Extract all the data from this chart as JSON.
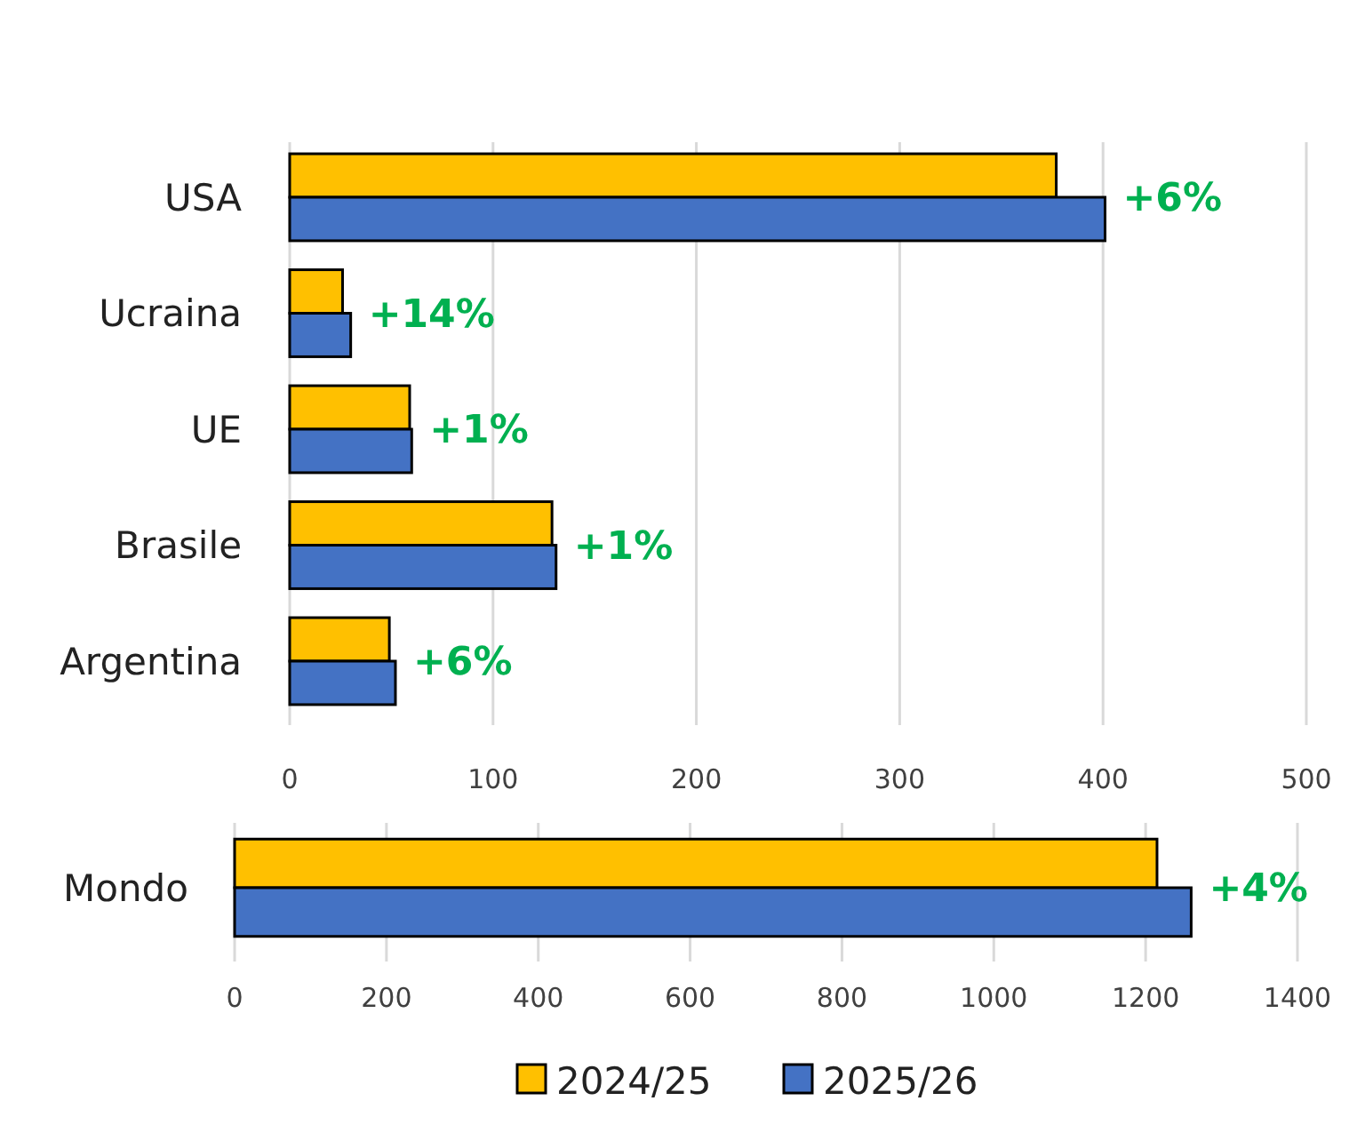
{
  "chart_data": [
    {
      "type": "bar",
      "orientation": "horizontal",
      "categories": [
        "USA",
        "Ucraina",
        "UE",
        "Brasile",
        "Argentina"
      ],
      "series": [
        {
          "color": "#ffc000",
          "values": [
            377,
            26,
            59,
            129,
            49
          ]
        },
        {
          "color": "#4472c4",
          "values": [
            401,
            30,
            60,
            131,
            52
          ]
        }
      ],
      "xlim": [
        0,
        500
      ],
      "xticks": [
        0,
        100,
        200,
        300,
        400,
        500
      ],
      "grid": "x",
      "annotations": [
        {
          "text": "+6%",
          "x": 401,
          "y": "USA"
        },
        {
          "text": "+14%",
          "x": 30,
          "y": "Ucraina"
        },
        {
          "text": "+1%",
          "x": 60,
          "y": "UE"
        },
        {
          "text": "+1%",
          "x": 131,
          "y": "Brasile"
        },
        {
          "text": "+6%",
          "x": 52,
          "y": "Argentina"
        }
      ]
    },
    {
      "type": "bar",
      "orientation": "horizontal",
      "categories": [
        "Mondo"
      ],
      "series": [
        {
          "name": "2024/25",
          "color": "#ffc000",
          "values": [
            1215
          ]
        },
        {
          "name": "2025/26",
          "color": "#4472c4",
          "values": [
            1260
          ]
        }
      ],
      "xlim": [
        0,
        1400
      ],
      "xticks": [
        0,
        200,
        400,
        600,
        800,
        1000,
        1200,
        1400
      ],
      "grid": "x",
      "legend": "bottom",
      "annotations": [
        {
          "text": "+4%",
          "x": 1260,
          "y": "Mondo"
        }
      ]
    }
  ]
}
